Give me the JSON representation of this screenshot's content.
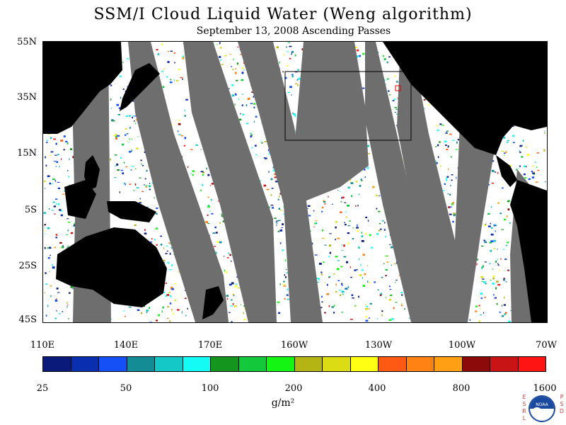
{
  "title": "SSM/I Cloud Liquid Water (Weng algorithm)",
  "subtitle": "September 13, 2008  Ascending Passes",
  "lat_labels": [
    "55N",
    "35N",
    "15N",
    "5S",
    "25S",
    "45S"
  ],
  "lon_labels": [
    "110E",
    "140E",
    "170E",
    "160W",
    "130W",
    "100W",
    "70W"
  ],
  "colorbar": {
    "colors": [
      "#0a1a7a",
      "#0a2eb0",
      "#1450f5",
      "#148c96",
      "#14c8c8",
      "#14faf5",
      "#14961e",
      "#14c83c",
      "#14f514",
      "#b4b414",
      "#dcdc14",
      "#ffff14",
      "#ff5a14",
      "#ff8214",
      "#ffa014",
      "#8c0a0a",
      "#c81414",
      "#ff1414"
    ],
    "labels": [
      "25",
      "50",
      "100",
      "200",
      "400",
      "800",
      "1600"
    ],
    "units": "g/m²"
  },
  "logo": {
    "left_letters": [
      "E",
      "S",
      "R",
      "L"
    ],
    "right_letters": [
      "P",
      "S",
      "D"
    ],
    "text": "NOAA"
  },
  "palette": {
    "land": "#000000",
    "no_data": "#6e6e6e",
    "background": "#ffffff"
  }
}
